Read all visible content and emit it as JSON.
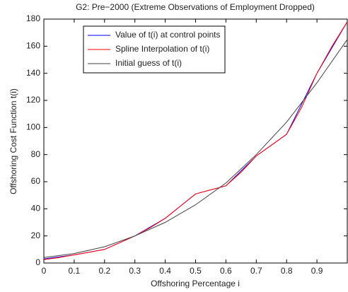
{
  "chart_data": {
    "type": "line",
    "title": "G2: Pre−2000 (Extreme Observations of Employment Dropped)",
    "x_label": "Offshoring Percentage i",
    "y_label": "Offshoring Cost Function t(i)",
    "series": [
      {
        "name": "Value of t(i) at control points",
        "color": "#0000ff",
        "x": [
          0,
          0.1,
          0.2,
          0.3,
          0.4,
          0.5,
          0.6,
          0.7,
          0.8,
          0.9,
          1
        ],
        "values": [
          3,
          6,
          10,
          20,
          33,
          51,
          57,
          79,
          95,
          140,
          178
        ]
      },
      {
        "name": "Spline Interpolation of t(i)",
        "color": "#ff0000",
        "x": [
          0,
          0.05,
          0.1,
          0.15,
          0.2,
          0.25,
          0.3,
          0.35,
          0.4,
          0.45,
          0.5,
          0.55,
          0.6,
          0.65,
          0.7,
          0.75,
          0.8,
          0.85,
          0.9,
          0.95,
          1
        ],
        "values": [
          2.5,
          4,
          6,
          8,
          10,
          15,
          20,
          26,
          33,
          42,
          51,
          54,
          57,
          67,
          79,
          87,
          95,
          115,
          140,
          160,
          178
        ]
      },
      {
        "name": "Initial guess of t(i)",
        "color": "#404040",
        "x": [
          0,
          0.1,
          0.2,
          0.3,
          0.4,
          0.5,
          0.6,
          0.7,
          0.8,
          0.9,
          1
        ],
        "values": [
          4,
          7,
          12,
          20,
          30,
          43,
          59,
          80,
          104,
          133,
          165
        ]
      }
    ],
    "xlim": [
      0,
      1
    ],
    "xticks": [
      0,
      0.1,
      0.2,
      0.3,
      0.4,
      0.5,
      0.6,
      0.7,
      0.8,
      0.9
    ],
    "ylim": [
      0,
      180
    ],
    "yticks": [
      0,
      20,
      40,
      60,
      80,
      100,
      120,
      140,
      160,
      180
    ],
    "legend": "upper-left"
  }
}
